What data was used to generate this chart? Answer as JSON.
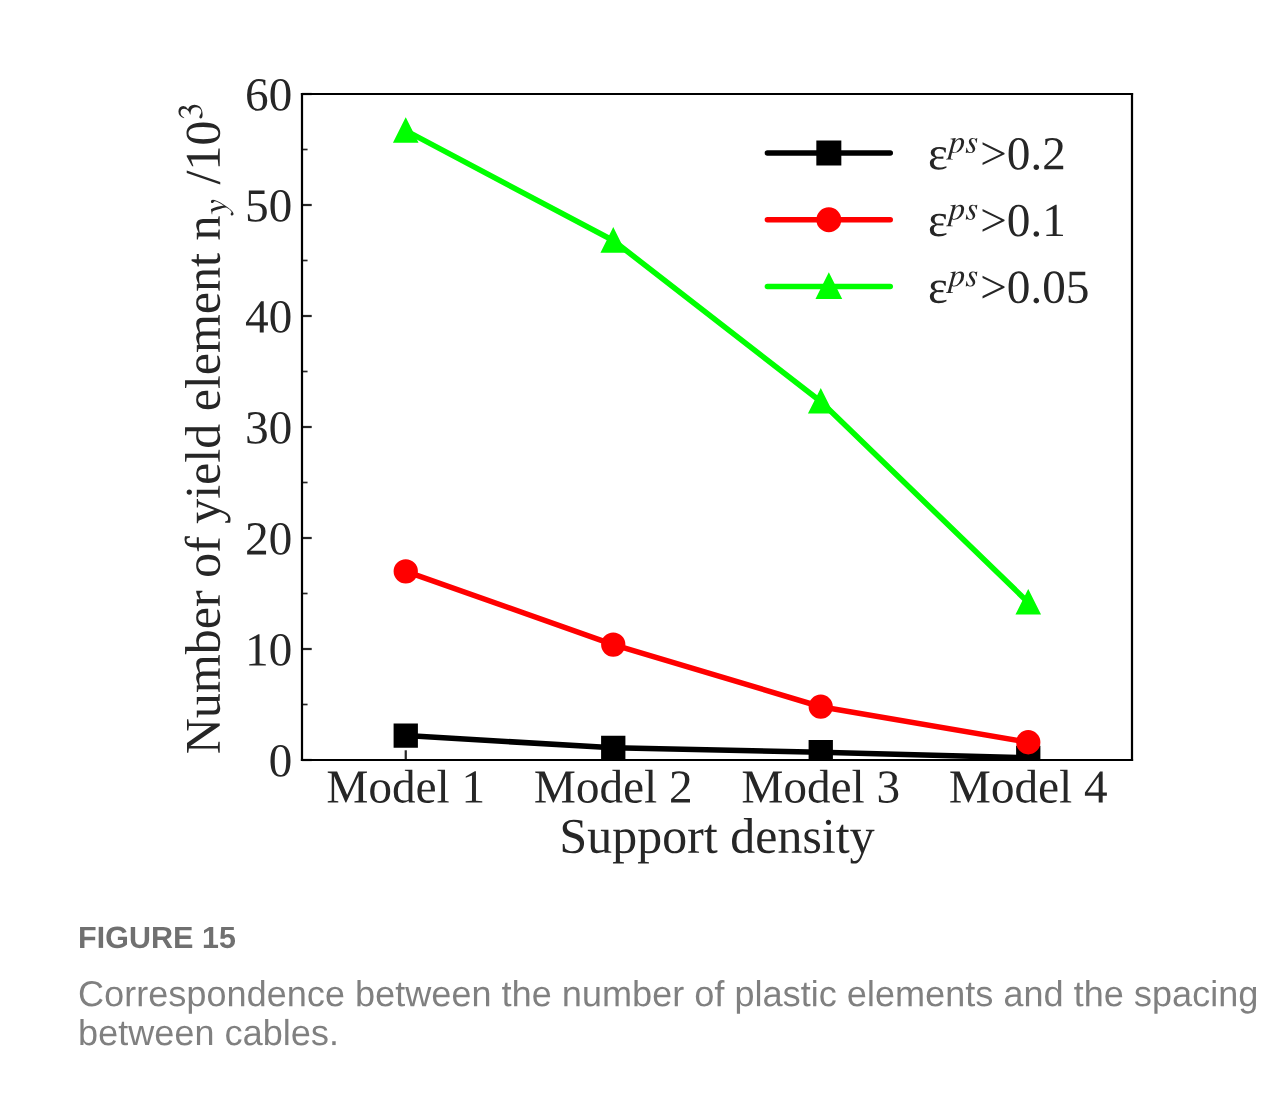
{
  "chart_data": {
    "type": "line",
    "xlabel": "Support density",
    "ylabel": "Number of yield element n$_{y}$ /10$^{3}$",
    "categories": [
      "Model 1",
      "Model 2",
      "Model 3",
      "Model 4"
    ],
    "series": [
      {
        "name": "ε$^{ps}$>0.2",
        "color": "#000000",
        "marker": "square",
        "values": [
          2.2,
          1.1,
          0.7,
          0.2
        ]
      },
      {
        "name": "ε$^{ps}$>0.1",
        "color": "#ff0000",
        "marker": "circle",
        "values": [
          17.0,
          10.4,
          4.8,
          1.6
        ]
      },
      {
        "name": "ε$^{ps}$>0.05",
        "color": "#00ff00",
        "marker": "triangle",
        "values": [
          56.7,
          46.8,
          32.3,
          14.2
        ]
      }
    ],
    "ylim": [
      0,
      60
    ],
    "yticks": [
      0,
      10,
      20,
      30,
      40,
      50,
      60
    ],
    "grid": false,
    "legend": "top right",
    "line_style": "solid",
    "annotations": [
      "FIGURE 15",
      "Correspondence between the number of plastic elements and the spacing between cables."
    ]
  }
}
